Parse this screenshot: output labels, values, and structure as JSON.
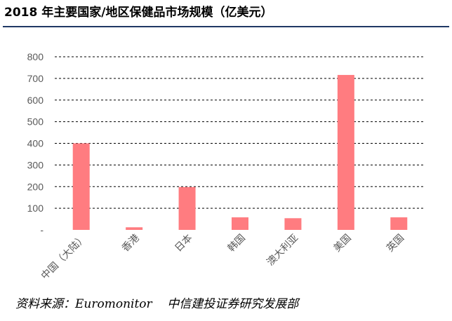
{
  "title": "2018 年主要国家/地区保健品市场规模（亿美元）",
  "source": "资料来源：Euromonitor    中信建投证券研究发展部",
  "colors": {
    "bar": "#ff7c80",
    "title_rule": "#1f3864",
    "grid": "#000000",
    "text": "#595959"
  },
  "chart_data": {
    "type": "bar",
    "title": "2018 年主要国家/地区保健品市场规模（亿美元）",
    "xlabel": "",
    "ylabel": "",
    "categories": [
      "中国（大陆）",
      "香港",
      "日本",
      "韩国",
      "澳大利亚",
      "美国",
      "英国"
    ],
    "values": [
      400,
      12,
      198,
      58,
      54,
      716,
      58
    ],
    "ylim": [
      0,
      800
    ],
    "yticks": [
      0,
      100,
      200,
      300,
      400,
      500,
      600,
      700,
      800
    ],
    "ytick_labels": [
      "-",
      "100",
      "200",
      "300",
      "400",
      "500",
      "600",
      "700",
      "800"
    ],
    "grid": true,
    "grid_style": "dashed",
    "legend": "none"
  }
}
